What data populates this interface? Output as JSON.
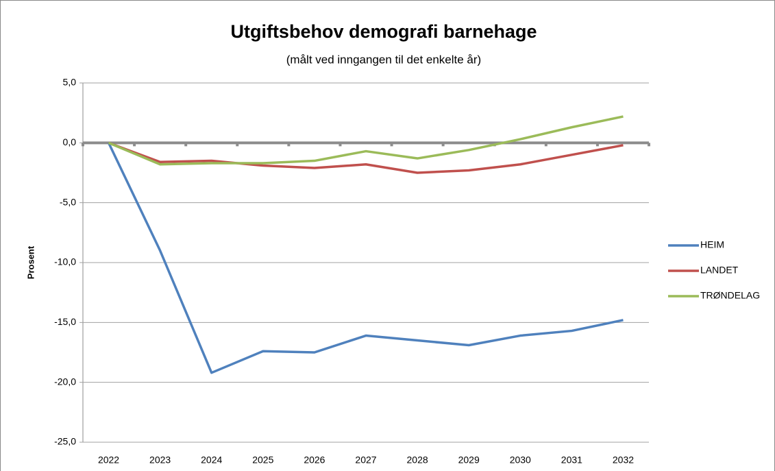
{
  "chart_data": {
    "type": "line",
    "title": "Utgiftsbehov demografi barnehage",
    "subtitle": "(målt ved inngangen til det enkelte år)",
    "y_label": "Prosent",
    "categories": [
      "2022",
      "2023",
      "2024",
      "2025",
      "2026",
      "2027",
      "2028",
      "2029",
      "2030",
      "2031",
      "2032"
    ],
    "series": [
      {
        "name": "HEIM",
        "color": "#4f81bd",
        "values": [
          0,
          -9.0,
          -19.2,
          -17.4,
          -17.5,
          -16.1,
          -16.5,
          -16.9,
          -16.1,
          -15.7,
          -14.8
        ]
      },
      {
        "name": "LANDET",
        "color": "#c0504d",
        "values": [
          0,
          -1.6,
          -1.5,
          -1.9,
          -2.1,
          -1.8,
          -2.5,
          -2.3,
          -1.8,
          -1.0,
          -0.2
        ]
      },
      {
        "name": "TRØNDELAG",
        "color": "#9bbb59",
        "values": [
          0,
          -1.8,
          -1.7,
          -1.7,
          -1.5,
          -0.7,
          -1.3,
          -0.6,
          0.3,
          1.3,
          2.2
        ]
      }
    ],
    "ylim": [
      -25,
      5
    ],
    "yticks": [
      {
        "value": -25,
        "label": "-25,0"
      },
      {
        "value": -20,
        "label": "-20,0"
      },
      {
        "value": -15,
        "label": "-15,0"
      },
      {
        "value": -10,
        "label": "-10,0"
      },
      {
        "value": -5,
        "label": "-5,0"
      },
      {
        "value": 0,
        "label": "0,0"
      },
      {
        "value": 5,
        "label": "5,0"
      }
    ],
    "grid": true,
    "legend": "right"
  }
}
